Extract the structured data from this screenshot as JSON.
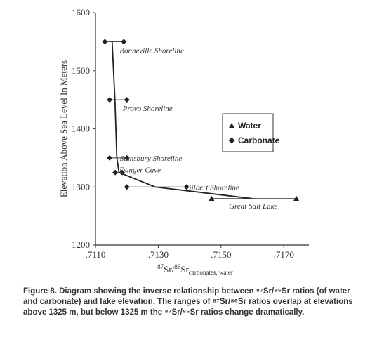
{
  "chart_data": {
    "type": "scatter",
    "xlabel_parts": [
      "87",
      "Sr/",
      "86",
      "Sr",
      "carbonates, water"
    ],
    "ylabel": "Elevation Above Sea Level In Meters",
    "xlim": [
      0.711,
      0.7178
    ],
    "ylim": [
      1200,
      1600
    ],
    "x_ticks": [
      {
        "value": 0.711,
        "label": ".7110"
      },
      {
        "value": 0.713,
        "label": ".7130"
      },
      {
        "value": 0.715,
        "label": ".7150"
      },
      {
        "value": 0.717,
        "label": ".7170"
      }
    ],
    "y_ticks": [
      {
        "value": 1200,
        "label": "1200"
      },
      {
        "value": 1300,
        "label": "1300"
      },
      {
        "value": 1400,
        "label": "1400"
      },
      {
        "value": 1500,
        "label": "1500"
      },
      {
        "value": 1600,
        "label": "1600"
      }
    ],
    "legend": {
      "position": "right",
      "entries": [
        {
          "name": "Water",
          "marker": "triangle"
        },
        {
          "name": "Carbonate",
          "marker": "diamond"
        }
      ]
    },
    "ranges": [
      {
        "label": "Bonneville Shoreline",
        "y": 1550,
        "x_min": 0.7113,
        "x_max": 0.7119,
        "marker": "diamond"
      },
      {
        "label": "Provo Shoreline",
        "y": 1450,
        "x_min": 0.71145,
        "x_max": 0.712,
        "marker": "diamond"
      },
      {
        "label": "Stansbury Shoreline",
        "y": 1350,
        "x_min": 0.71145,
        "x_max": 0.712,
        "marker": "diamond"
      },
      {
        "label": "Danger Cave",
        "y": 1325,
        "x_min": 0.71163,
        "x_max": 0.71185,
        "marker": "diamond"
      },
      {
        "label": "Gilbert Shoreline",
        "y": 1300,
        "x_min": 0.712,
        "x_max": 0.7139,
        "marker": "diamond"
      },
      {
        "label": "Great Salt Lake",
        "y": 1280,
        "x_min": 0.7147,
        "x_max": 0.7174,
        "marker": "triangle"
      }
    ],
    "trend_line": {
      "x": [
        0.71153,
        0.71162,
        0.71168,
        0.71175,
        0.7129,
        0.716
      ],
      "y": [
        1550,
        1450,
        1350,
        1325,
        1300,
        1280
      ]
    }
  },
  "caption": "Figure 8. Diagram showing the inverse relationship between ⁸⁷Sr/⁸⁶Sr ratios (of water and carbonate) and lake elevation. The ranges of ⁸⁷Sr/⁸⁶Sr ratios overlap at elevations above 1325 m, but below 1325 m the ⁸⁷Sr/⁸⁶Sr ratios change dramatically."
}
